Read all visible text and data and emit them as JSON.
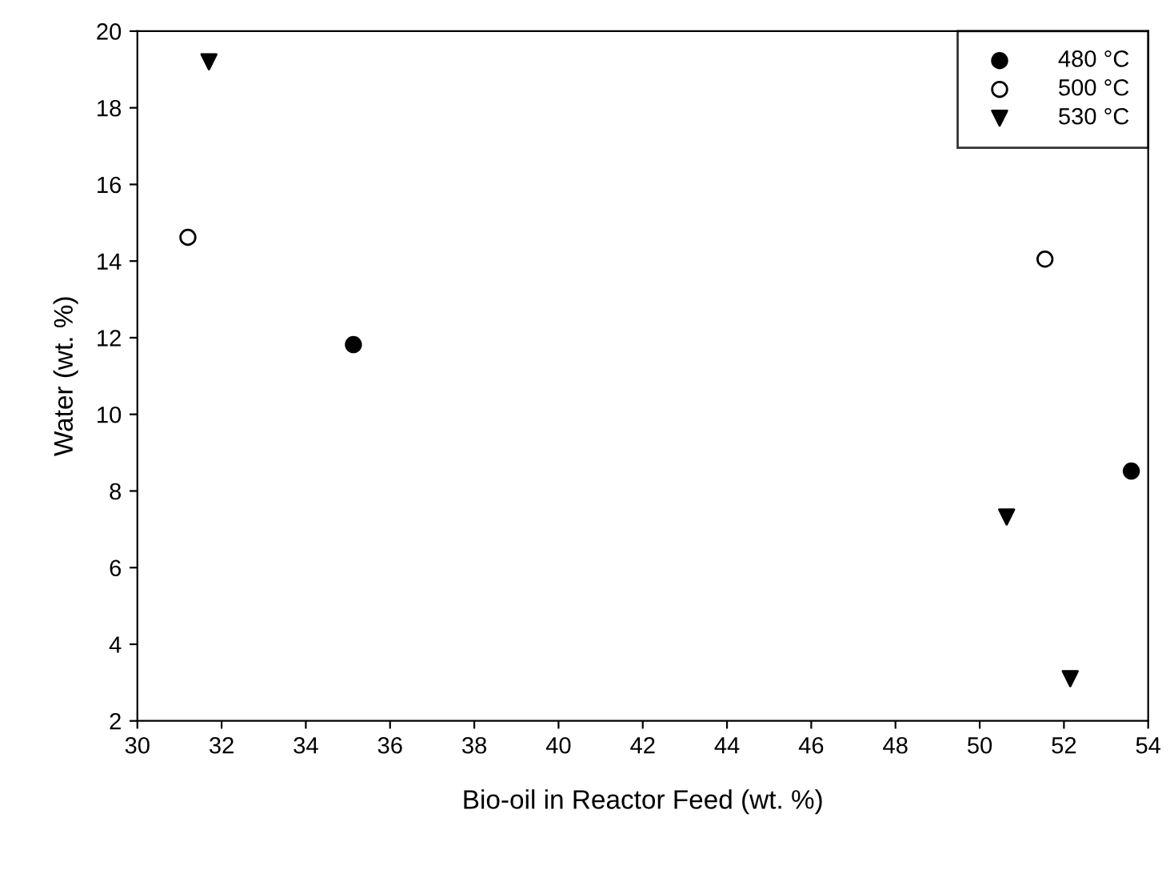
{
  "chart_data": {
    "type": "scatter",
    "xlabel": "Bio-oil in Reactor Feed (wt. %)",
    "ylabel": "Water (wt. %)",
    "xlim": [
      30,
      54
    ],
    "xticks": [
      30,
      32,
      34,
      36,
      38,
      40,
      42,
      44,
      46,
      48,
      50,
      52,
      54
    ],
    "ylim": [
      2,
      20
    ],
    "yticks": [
      2,
      4,
      6,
      8,
      10,
      12,
      14,
      16,
      18,
      20
    ],
    "grid": false,
    "legend": "top right",
    "series": [
      {
        "name": "480 °C",
        "color": "#000000",
        "marker": "circle",
        "x": [
          35.13,
          53.6
        ],
        "values": [
          11.82,
          8.52
        ]
      },
      {
        "name": "500 °C",
        "color": "#ffffff",
        "marker": "circle",
        "x": [
          31.2,
          51.55
        ],
        "values": [
          14.62,
          14.05
        ]
      },
      {
        "name": "530 °C",
        "color": "#000000",
        "marker": "triangle",
        "x": [
          31.7,
          50.64,
          52.15
        ],
        "values": [
          19.2,
          7.32,
          3.1
        ]
      }
    ]
  }
}
